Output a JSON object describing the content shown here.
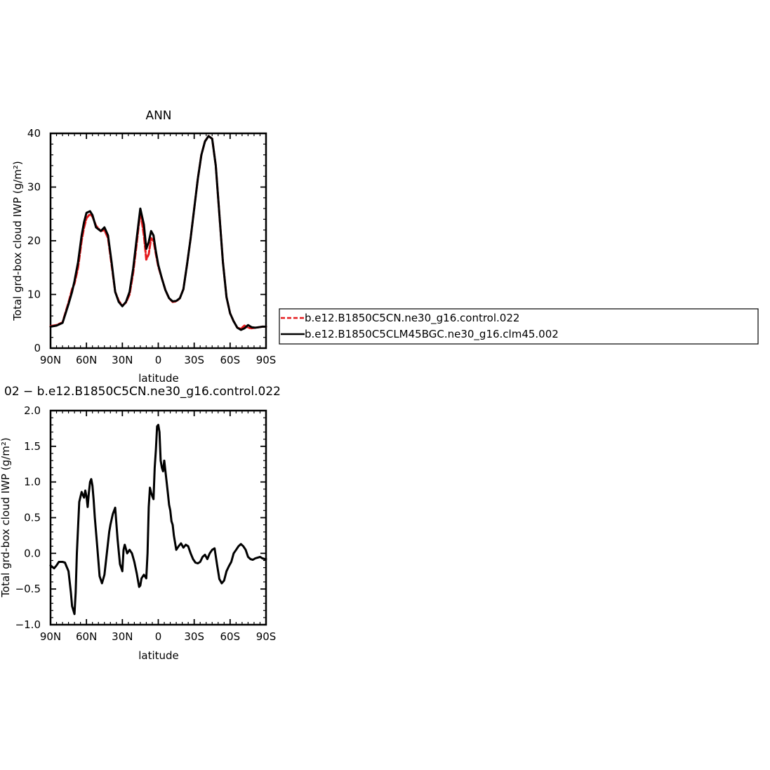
{
  "chart_data": [
    {
      "type": "line",
      "title": "ANN",
      "xlabel": "latitude",
      "ylabel": "Total grd-box cloud IWP (g/m²)",
      "ylim": [
        0,
        40
      ],
      "xlim": [
        90,
        -90
      ],
      "x_tick_values": [
        90,
        60,
        30,
        0,
        -30,
        -60,
        -90
      ],
      "x_tick_labels": [
        "90N",
        "60N",
        "30N",
        "0",
        "30S",
        "60S",
        "90S"
      ],
      "y_tick_values": [
        0,
        10,
        20,
        30,
        40
      ],
      "y_tick_labels": [
        "0",
        "10",
        "20",
        "30",
        "40"
      ],
      "grid": false,
      "legend_placement": "right of chart",
      "series": [
        {
          "name": "b.e12.B1850C5CN.ne30_g16.control.022",
          "color": "#e41a1c",
          "dash": "dashed",
          "x": [
            90,
            85,
            80,
            75,
            72,
            70,
            67,
            64,
            62,
            60,
            57,
            55,
            52,
            48,
            45,
            42,
            39,
            36,
            33,
            30,
            27,
            24,
            21,
            18,
            15,
            12,
            10,
            8,
            6,
            4,
            2,
            0,
            -3,
            -6,
            -9,
            -12,
            -15,
            -18,
            -21,
            -24,
            -27,
            -30,
            -33,
            -36,
            -39,
            -42,
            -45,
            -48,
            -51,
            -54,
            -57,
            -60,
            -63,
            -66,
            -69,
            -72,
            -75,
            -78,
            -81,
            -84,
            -87,
            -90
          ],
          "y": [
            4.1,
            4.3,
            4.8,
            8.5,
            11.0,
            12.0,
            15.0,
            20.0,
            22.5,
            24.2,
            25.0,
            24.5,
            22.8,
            21.8,
            22.0,
            20.5,
            15.5,
            10.5,
            8.8,
            7.9,
            8.5,
            10.0,
            14.0,
            19.5,
            25.6,
            21.0,
            16.5,
            17.5,
            20.5,
            20.0,
            17.5,
            15.2,
            13.0,
            10.8,
            9.3,
            8.6,
            8.7,
            9.3,
            11.0,
            15.5,
            20.5,
            26.0,
            31.5,
            36.0,
            38.5,
            39.5,
            39.0,
            34.0,
            25.0,
            16.0,
            9.5,
            6.5,
            5.0,
            3.8,
            3.6,
            4.2,
            3.8,
            3.7,
            3.8,
            3.9,
            4.0,
            4.0
          ]
        },
        {
          "name": "b.e12.B1850C5CLM45BGC.ne30_g16.clm45.002",
          "color": "#000000",
          "dash": "solid",
          "x": [
            90,
            85,
            80,
            75,
            72,
            70,
            67,
            64,
            62,
            60,
            57,
            55,
            52,
            48,
            45,
            42,
            39,
            36,
            33,
            30,
            27,
            24,
            21,
            18,
            15,
            12,
            10,
            8,
            6,
            4,
            2,
            0,
            -3,
            -6,
            -9,
            -12,
            -15,
            -18,
            -21,
            -24,
            -27,
            -30,
            -33,
            -36,
            -39,
            -42,
            -45,
            -48,
            -51,
            -54,
            -57,
            -60,
            -63,
            -66,
            -69,
            -72,
            -75,
            -78,
            -81,
            -84,
            -87,
            -90
          ],
          "y": [
            4.0,
            4.2,
            4.7,
            8.2,
            10.5,
            12.5,
            16.0,
            21.0,
            23.5,
            25.2,
            25.5,
            24.8,
            22.5,
            21.8,
            22.5,
            21.0,
            16.0,
            10.5,
            8.6,
            7.8,
            8.6,
            10.5,
            14.8,
            20.5,
            26.0,
            23.0,
            18.5,
            19.8,
            21.8,
            21.0,
            18.0,
            15.5,
            13.0,
            10.8,
            9.3,
            8.7,
            8.8,
            9.3,
            11.0,
            15.5,
            20.5,
            26.0,
            31.5,
            36.0,
            38.5,
            39.5,
            39.0,
            34.0,
            25.0,
            16.0,
            9.5,
            6.5,
            5.0,
            3.8,
            3.4,
            3.7,
            4.3,
            3.9,
            3.8,
            3.9,
            4.0,
            4.0
          ]
        }
      ]
    },
    {
      "type": "line",
      "title": "02 − b.e12.B1850C5CN.ne30_g16.control.022",
      "xlabel": "latitude",
      "ylabel": "Total grd-box cloud IWP (g/m²)",
      "ylim": [
        -1.0,
        2.0
      ],
      "xlim": [
        90,
        -90
      ],
      "x_tick_values": [
        90,
        60,
        30,
        0,
        -30,
        -60,
        -90
      ],
      "x_tick_labels": [
        "90N",
        "60N",
        "30N",
        "0",
        "30S",
        "60S",
        "90S"
      ],
      "y_tick_values": [
        -1.0,
        -0.5,
        0.0,
        0.5,
        1.0,
        1.5,
        2.0
      ],
      "y_tick_labels": [
        "−1.0",
        "−0.5",
        "0.0",
        "0.5",
        "1.0",
        "1.5",
        "2.0"
      ],
      "grid": false,
      "series": [
        {
          "color": "#000000",
          "dash": "solid",
          "x": [
            90,
            87,
            85,
            83,
            80,
            78,
            75,
            73,
            72,
            70,
            69,
            68,
            66,
            64,
            63,
            62,
            61,
            60,
            59,
            58,
            57,
            56,
            55,
            54,
            53,
            51,
            49,
            47,
            45,
            43,
            41,
            40,
            38,
            36,
            34,
            32,
            30,
            29,
            28,
            26,
            24,
            22,
            20,
            18,
            16,
            15,
            14,
            12,
            10,
            9,
            8,
            7,
            6,
            5,
            4,
            3,
            2,
            1,
            0,
            -1,
            -2,
            -3,
            -4,
            -5,
            -6,
            -7,
            -8,
            -9,
            -10,
            -11,
            -12,
            -13,
            -15,
            -17,
            -19,
            -21,
            -23,
            -25,
            -27,
            -29,
            -31,
            -33,
            -35,
            -37,
            -39,
            -41,
            -43,
            -45,
            -47,
            -49,
            -51,
            -53,
            -55,
            -57,
            -59,
            -61,
            -63,
            -65,
            -67,
            -69,
            -71,
            -73,
            -75,
            -77,
            -79,
            -81,
            -83,
            -85,
            -87,
            -89,
            -90
          ],
          "y": [
            -0.17,
            -0.21,
            -0.17,
            -0.12,
            -0.12,
            -0.13,
            -0.25,
            -0.55,
            -0.74,
            -0.85,
            -0.55,
            0.0,
            0.72,
            0.86,
            0.82,
            0.78,
            0.88,
            0.8,
            0.65,
            0.85,
            1.0,
            1.04,
            0.95,
            0.75,
            0.5,
            0.1,
            -0.32,
            -0.42,
            -0.3,
            0.0,
            0.3,
            0.4,
            0.55,
            0.64,
            0.2,
            -0.15,
            -0.25,
            0.05,
            0.12,
            0.0,
            0.05,
            0.0,
            -0.12,
            -0.28,
            -0.47,
            -0.45,
            -0.35,
            -0.3,
            -0.35,
            0.0,
            0.65,
            0.92,
            0.85,
            0.8,
            0.76,
            1.2,
            1.45,
            1.78,
            1.8,
            1.7,
            1.3,
            1.2,
            1.15,
            1.3,
            1.15,
            1.0,
            0.85,
            0.68,
            0.6,
            0.45,
            0.4,
            0.25,
            0.05,
            0.1,
            0.14,
            0.08,
            0.12,
            0.1,
            0.0,
            -0.08,
            -0.13,
            -0.14,
            -0.12,
            -0.05,
            -0.02,
            -0.08,
            0.0,
            0.05,
            0.07,
            -0.15,
            -0.36,
            -0.42,
            -0.38,
            -0.25,
            -0.18,
            -0.12,
            0.0,
            0.05,
            0.1,
            0.13,
            0.1,
            0.05,
            -0.05,
            -0.08,
            -0.09,
            -0.07,
            -0.06,
            -0.05,
            -0.07,
            -0.08,
            -0.08
          ]
        }
      ]
    }
  ]
}
